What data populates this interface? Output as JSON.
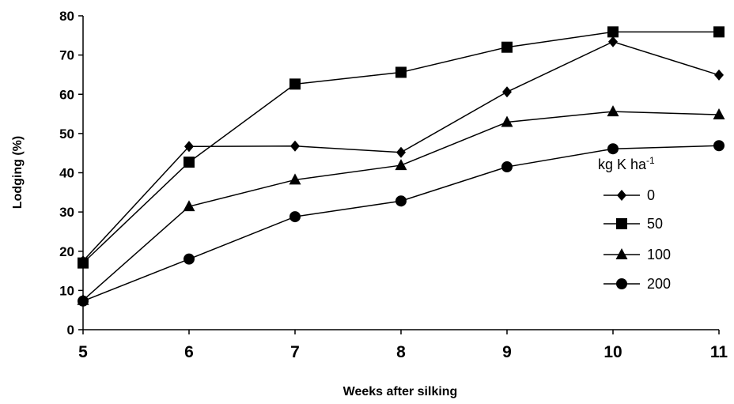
{
  "chart_data": {
    "type": "line",
    "xlabel": "Weeks after silking",
    "ylabel": "Lodging (%)",
    "x": [
      5,
      6,
      7,
      8,
      9,
      10,
      11
    ],
    "xlim": [
      5,
      11
    ],
    "ylim": [
      0,
      80
    ],
    "yticks": [
      0,
      10,
      20,
      30,
      40,
      50,
      60,
      70,
      80
    ],
    "xticks": [
      "5",
      "6",
      "7",
      "8",
      "9",
      "10",
      "11"
    ],
    "grid": false,
    "legend": {
      "title_main": "kg K ha",
      "title_sup": "-1",
      "placement": "right"
    },
    "series": [
      {
        "name": "0",
        "marker": "diamond",
        "values": [
          17.5,
          46.7,
          46.8,
          45.2,
          60.6,
          73.4,
          64.9
        ]
      },
      {
        "name": "50",
        "marker": "square",
        "values": [
          17.0,
          42.7,
          62.6,
          65.6,
          72.0,
          75.9,
          75.9
        ]
      },
      {
        "name": "100",
        "marker": "triangle",
        "values": [
          7.5,
          31.4,
          38.2,
          41.9,
          52.9,
          55.6,
          54.8
        ]
      },
      {
        "name": "200",
        "marker": "circle",
        "values": [
          7.3,
          18.0,
          28.8,
          32.8,
          41.5,
          46.1,
          46.9
        ]
      }
    ]
  }
}
